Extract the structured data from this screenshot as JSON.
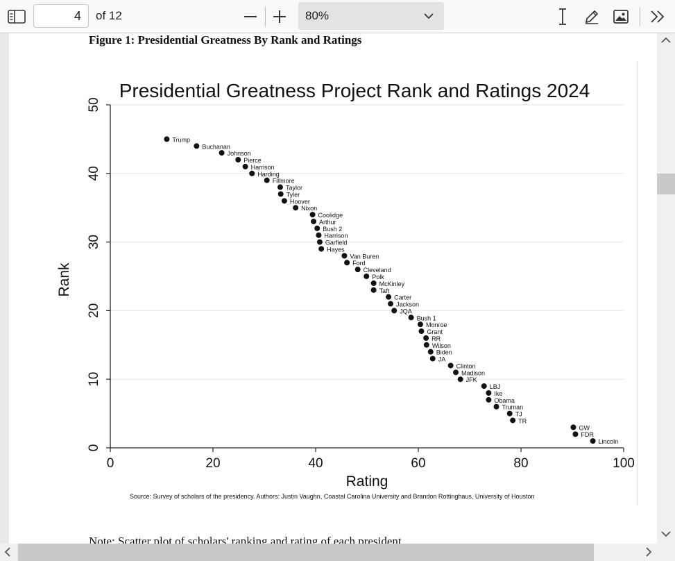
{
  "toolbar": {
    "sidebar_icon": "sidebar-toggle-icon",
    "page_number": "4",
    "page_total": "of 12",
    "zoom_out_icon": "minus-icon",
    "zoom_in_icon": "plus-icon",
    "zoom_value": "80%",
    "text_select_icon": "text-cursor-icon",
    "draw_icon": "pen-icon",
    "image_icon": "image-icon",
    "more_icon": "double-chevron-right-icon"
  },
  "document": {
    "figure_caption": "Figure 1: Presidential Greatness By Rank and Ratings",
    "note_text": "Note: Scatter plot of scholars' ranking and rating of each president"
  },
  "chart_data": {
    "type": "scatter",
    "title": "Presidential Greatness Project Rank and Ratings 2024",
    "xlabel": "Rating",
    "ylabel": "Rank",
    "xlim": [
      0,
      100
    ],
    "ylim": [
      0,
      50
    ],
    "xticks": [
      "0",
      "20",
      "40",
      "60",
      "80",
      "100"
    ],
    "yticks": [
      "0",
      "10",
      "20",
      "30",
      "40",
      "50"
    ],
    "grid": true,
    "source": "Source: Survey of scholars of the presidency.  Authors: Justin Vaughn, Coastal Carolina University and Brandon Rottinghaus, University of Houston",
    "points": [
      {
        "label": "Trump",
        "x": 11,
        "y": 45
      },
      {
        "label": "Buchanan",
        "x": 16.8,
        "y": 44
      },
      {
        "label": "Johnson",
        "x": 21.7,
        "y": 43
      },
      {
        "label": "Pierce",
        "x": 24.9,
        "y": 42
      },
      {
        "label": "Harrison",
        "x": 26.3,
        "y": 41
      },
      {
        "label": "Harding",
        "x": 27.6,
        "y": 40
      },
      {
        "label": "Fillmore",
        "x": 30.5,
        "y": 39
      },
      {
        "label": "Taylor",
        "x": 33.1,
        "y": 38
      },
      {
        "label": "Tyler",
        "x": 33.2,
        "y": 37
      },
      {
        "label": "Hoover",
        "x": 33.9,
        "y": 36
      },
      {
        "label": "Nixon",
        "x": 36.1,
        "y": 35
      },
      {
        "label": "Coolidge",
        "x": 39.4,
        "y": 34
      },
      {
        "label": "Arthur",
        "x": 39.6,
        "y": 33
      },
      {
        "label": "Bush 2",
        "x": 40.3,
        "y": 32
      },
      {
        "label": "Harrison",
        "x": 40.6,
        "y": 31
      },
      {
        "label": "Garfield",
        "x": 40.8,
        "y": 30
      },
      {
        "label": "Hayes",
        "x": 41.1,
        "y": 29
      },
      {
        "label": "Van Buren",
        "x": 45.6,
        "y": 28
      },
      {
        "label": "Ford",
        "x": 46.1,
        "y": 27
      },
      {
        "label": "Cleveland",
        "x": 48.2,
        "y": 26
      },
      {
        "label": "Polk",
        "x": 49.9,
        "y": 25
      },
      {
        "label": "McKinley",
        "x": 51.3,
        "y": 24
      },
      {
        "label": "Taft",
        "x": 51.3,
        "y": 23
      },
      {
        "label": "Carter",
        "x": 54.2,
        "y": 22
      },
      {
        "label": "Jackson",
        "x": 54.6,
        "y": 21
      },
      {
        "label": "JQA",
        "x": 55.3,
        "y": 20
      },
      {
        "label": "Bush 1",
        "x": 58.6,
        "y": 19
      },
      {
        "label": "Monroe",
        "x": 60.4,
        "y": 18
      },
      {
        "label": "Grant",
        "x": 60.6,
        "y": 17
      },
      {
        "label": "RR",
        "x": 61.5,
        "y": 16
      },
      {
        "label": "Wilson",
        "x": 61.6,
        "y": 15
      },
      {
        "label": "Biden",
        "x": 62.4,
        "y": 14
      },
      {
        "label": "JA",
        "x": 62.8,
        "y": 13
      },
      {
        "label": "Clinton",
        "x": 66.3,
        "y": 12
      },
      {
        "label": "Madison",
        "x": 67.3,
        "y": 11
      },
      {
        "label": "JFK",
        "x": 68.2,
        "y": 10
      },
      {
        "label": "LBJ",
        "x": 72.8,
        "y": 9
      },
      {
        "label": "Ike",
        "x": 73.7,
        "y": 8
      },
      {
        "label": "Obama",
        "x": 73.7,
        "y": 7
      },
      {
        "label": "Truman",
        "x": 75.2,
        "y": 6
      },
      {
        "label": "TJ",
        "x": 77.8,
        "y": 5
      },
      {
        "label": "TR",
        "x": 78.4,
        "y": 4
      },
      {
        "label": "GW",
        "x": 90.2,
        "y": 3
      },
      {
        "label": "FDR",
        "x": 90.6,
        "y": 2
      },
      {
        "label": "Lincoln",
        "x": 94,
        "y": 1
      }
    ]
  }
}
